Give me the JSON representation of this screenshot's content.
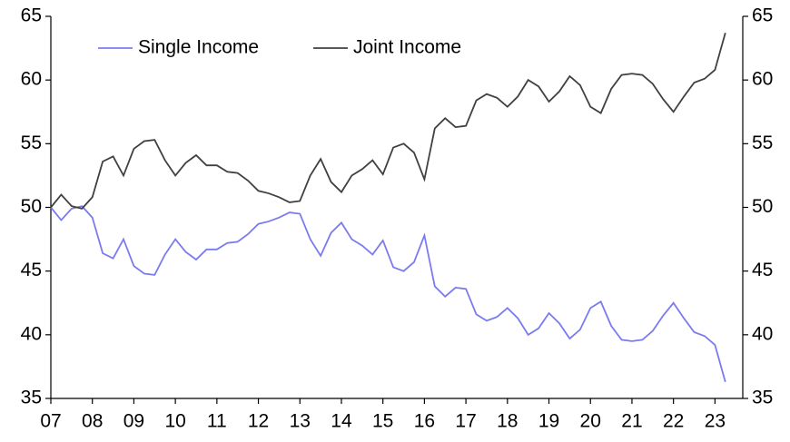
{
  "chart_data": {
    "type": "line",
    "x": [
      2007,
      2007.25,
      2007.5,
      2007.75,
      2008,
      2008.25,
      2008.5,
      2008.75,
      2009,
      2009.25,
      2009.5,
      2009.75,
      2010,
      2010.25,
      2010.5,
      2010.75,
      2011,
      2011.25,
      2011.5,
      2011.75,
      2012,
      2012.25,
      2012.5,
      2012.75,
      2013,
      2013.25,
      2013.5,
      2013.75,
      2014,
      2014.25,
      2014.5,
      2014.75,
      2015,
      2015.25,
      2015.5,
      2015.75,
      2016,
      2016.25,
      2016.5,
      2016.75,
      2017,
      2017.25,
      2017.5,
      2017.75,
      2018,
      2018.25,
      2018.5,
      2018.75,
      2019,
      2019.25,
      2019.5,
      2019.75,
      2020,
      2020.25,
      2020.5,
      2020.75,
      2021,
      2021.25,
      2021.5,
      2021.75,
      2022,
      2022.25,
      2022.5,
      2022.75,
      2023,
      2023.25
    ],
    "series": [
      {
        "name": "Single Income",
        "color": "#7b7bf0",
        "values": [
          50.0,
          49.0,
          49.9,
          50.1,
          49.2,
          46.4,
          46.0,
          47.5,
          45.4,
          44.8,
          44.7,
          46.3,
          47.5,
          46.5,
          45.9,
          46.7,
          46.7,
          47.2,
          47.3,
          47.9,
          48.7,
          48.9,
          49.2,
          49.6,
          49.5,
          47.5,
          46.2,
          48.0,
          48.8,
          47.5,
          47.0,
          46.3,
          47.4,
          45.3,
          45.0,
          45.7,
          47.8,
          43.8,
          43.0,
          43.7,
          43.6,
          41.6,
          41.1,
          41.4,
          42.1,
          41.3,
          40.0,
          40.5,
          41.7,
          40.9,
          39.7,
          40.4,
          42.1,
          42.6,
          40.7,
          39.6,
          39.5,
          39.6,
          40.3,
          41.5,
          42.5,
          41.3,
          40.2,
          39.9,
          39.2,
          36.3
        ]
      },
      {
        "name": "Joint Income",
        "color": "#404040",
        "values": [
          50.0,
          51.0,
          50.1,
          49.9,
          50.8,
          53.6,
          54.0,
          52.5,
          54.6,
          55.2,
          55.3,
          53.7,
          52.5,
          53.5,
          54.1,
          53.3,
          53.3,
          52.8,
          52.7,
          52.1,
          51.3,
          51.1,
          50.8,
          50.4,
          50.5,
          52.5,
          53.8,
          52.0,
          51.2,
          52.5,
          53.0,
          53.7,
          52.6,
          54.7,
          55.0,
          54.3,
          52.2,
          56.2,
          57.0,
          56.3,
          56.4,
          58.4,
          58.9,
          58.6,
          57.9,
          58.7,
          60.0,
          59.5,
          58.3,
          59.1,
          60.3,
          59.6,
          57.9,
          57.4,
          59.3,
          60.4,
          60.5,
          60.4,
          59.7,
          58.5,
          57.5,
          58.7,
          59.8,
          60.1,
          60.8,
          63.7
        ]
      }
    ],
    "xlim": [
      2007,
      2023.67
    ],
    "xticks": [
      {
        "value": 2007,
        "label": "07"
      },
      {
        "value": 2008,
        "label": "08"
      },
      {
        "value": 2009,
        "label": "09"
      },
      {
        "value": 2010,
        "label": "10"
      },
      {
        "value": 2011,
        "label": "11"
      },
      {
        "value": 2012,
        "label": "12"
      },
      {
        "value": 2013,
        "label": "13"
      },
      {
        "value": 2014,
        "label": "14"
      },
      {
        "value": 2015,
        "label": "15"
      },
      {
        "value": 2016,
        "label": "16"
      },
      {
        "value": 2017,
        "label": "17"
      },
      {
        "value": 2018,
        "label": "18"
      },
      {
        "value": 2019,
        "label": "19"
      },
      {
        "value": 2020,
        "label": "20"
      },
      {
        "value": 2021,
        "label": "21"
      },
      {
        "value": 2022,
        "label": "22"
      },
      {
        "value": 2023,
        "label": "23"
      }
    ],
    "ylim": [
      35,
      65
    ],
    "yticks": [
      35,
      40,
      45,
      50,
      55,
      60,
      65
    ],
    "y2lim": [
      35,
      65
    ],
    "y2ticks": [
      35,
      40,
      45,
      50,
      55,
      60,
      65
    ],
    "legend": "top-left"
  }
}
